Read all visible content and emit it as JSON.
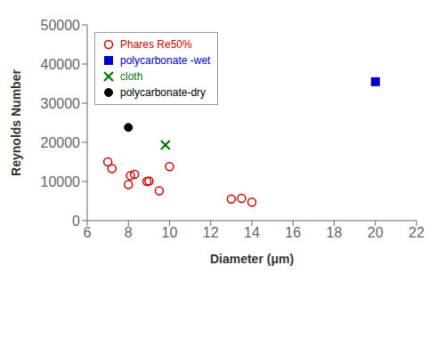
{
  "chart_data": {
    "type": "scatter",
    "xlabel": "Diameter (μm)",
    "ylabel": "Reynolds Number",
    "xlim": [
      6,
      22
    ],
    "ylim": [
      0,
      50000
    ],
    "xticks": [
      6,
      8,
      10,
      12,
      14,
      16,
      18,
      20,
      22
    ],
    "yticks": [
      0,
      10000,
      20000,
      30000,
      40000,
      50000
    ],
    "grid": false,
    "legend": "upper left",
    "series": [
      {
        "name": "Phares Re50%",
        "color": "#cc0000",
        "marker": "open_circle",
        "x": [
          7.0,
          7.2,
          8.0,
          8.1,
          8.3,
          8.9,
          9.0,
          9.5,
          10.0,
          13.0,
          13.5,
          14.0
        ],
        "values": [
          15000,
          13300,
          9200,
          11500,
          11800,
          10000,
          10100,
          7600,
          13800,
          5500,
          5700,
          4700
        ]
      },
      {
        "name": "polycarbonate -wet",
        "color": "#0000cc",
        "marker": "square",
        "x": [
          20.0
        ],
        "values": [
          35500
        ]
      },
      {
        "name": "cloth",
        "color": "#007700",
        "marker": "x",
        "x": [
          9.8
        ],
        "values": [
          19300
        ]
      },
      {
        "name": "polycarbonate-dry",
        "color": "#000000",
        "marker": "circle",
        "x": [
          8.0
        ],
        "values": [
          23800
        ]
      }
    ]
  }
}
